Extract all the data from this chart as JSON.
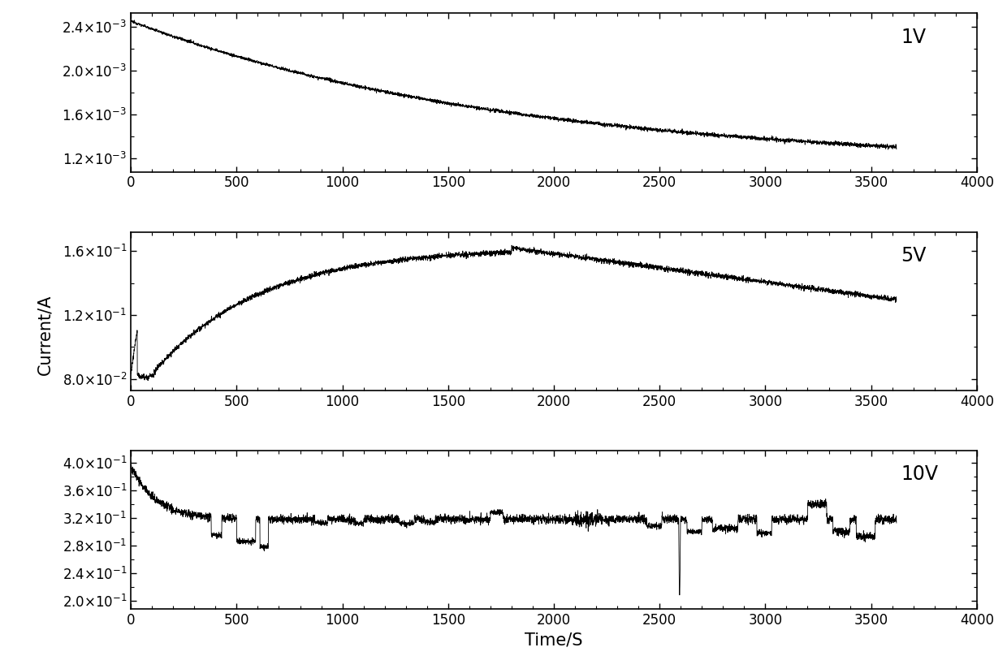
{
  "title": "",
  "xlabel": "Time/S",
  "ylabel": "Current/A",
  "xlabel_fontsize": 15,
  "ylabel_fontsize": 15,
  "tick_fontsize": 12,
  "background_color": "#ffffff",
  "line_color": "#000000",
  "panels": [
    {
      "label": "1V",
      "xlim": [
        0,
        4000
      ],
      "ylim": [
        0.00108,
        0.00252
      ],
      "yticks": [
        0.0012,
        0.0016,
        0.002,
        0.0024
      ],
      "xticks": [
        0,
        500,
        1000,
        1500,
        2000,
        2500,
        3000,
        3500,
        4000
      ]
    },
    {
      "label": "5V",
      "xlim": [
        0,
        4000
      ],
      "ylim": [
        0.073,
        0.172
      ],
      "yticks": [
        0.08,
        0.12,
        0.16
      ],
      "xticks": [
        0,
        500,
        1000,
        1500,
        2000,
        2500,
        3000,
        3500,
        4000
      ]
    },
    {
      "label": "10V",
      "xlim": [
        0,
        4000
      ],
      "ylim": [
        0.188,
        0.418
      ],
      "yticks": [
        0.2,
        0.24,
        0.28,
        0.32,
        0.36,
        0.4
      ],
      "xticks": [
        0,
        500,
        1000,
        1500,
        2000,
        2500,
        3000,
        3500,
        4000
      ]
    }
  ]
}
